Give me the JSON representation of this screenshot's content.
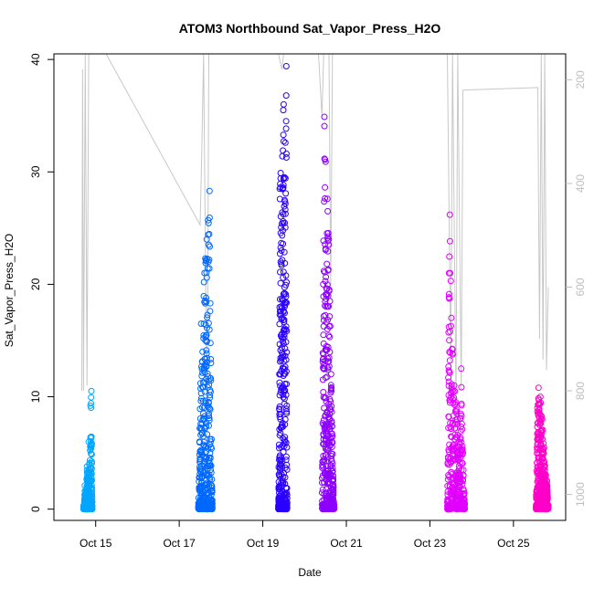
{
  "chart_data": {
    "type": "scatter",
    "title": "ATOM3 Northbound Sat_Vapor_Press_H2O",
    "xlabel": "Date",
    "ylabel": "Sat_Vapor_Press_H2O",
    "xlim": [
      "2016-10-14T00:00",
      "2016-10-26T06:00"
    ],
    "ylim": [
      -1,
      40.5
    ],
    "y_ticks": [
      0,
      10,
      20,
      30,
      40
    ],
    "x_ticks": [
      {
        "date": "2016-10-15T00:00",
        "label": "Oct 15"
      },
      {
        "date": "2016-10-17T00:00",
        "label": "Oct 17"
      },
      {
        "date": "2016-10-19T00:00",
        "label": "Oct 19"
      },
      {
        "date": "2016-10-21T00:00",
        "label": "Oct 21"
      },
      {
        "date": "2016-10-23T00:00",
        "label": "Oct 23"
      },
      {
        "date": "2016-10-25T00:00",
        "label": "Oct 25"
      }
    ],
    "right_axis": {
      "range": [
        1050,
        150
      ],
      "reversed": true,
      "ticks": [
        200,
        400,
        600,
        800,
        1000
      ],
      "color": "#bebebe"
    },
    "grid": false,
    "legend": "none",
    "series": [
      {
        "color": "#00a6ff",
        "start": "2016-10-14T17:00",
        "end": "2016-10-14T22:00",
        "max": 10.5,
        "points": [
          [
            0.0,
            0.1
          ],
          [
            0.1,
            0.6
          ],
          [
            0.15,
            2.1
          ],
          [
            0.3,
            1.0
          ],
          [
            0.4,
            3.8
          ],
          [
            0.5,
            2.2
          ],
          [
            0.6,
            6.0
          ],
          [
            0.7,
            4.1
          ],
          [
            0.8,
            9.2
          ],
          [
            0.9,
            10.5
          ],
          [
            1.0,
            0.3
          ]
        ]
      },
      {
        "color": "#0068ff",
        "start": "2016-10-17T11:00",
        "end": "2016-10-17T19:00",
        "max": 28.3,
        "points": [
          [
            0.0,
            0.2
          ],
          [
            0.08,
            6.0
          ],
          [
            0.15,
            11.2
          ],
          [
            0.2,
            16.5
          ],
          [
            0.3,
            14.0
          ],
          [
            0.4,
            20.2
          ],
          [
            0.5,
            22.3
          ],
          [
            0.6,
            24.0
          ],
          [
            0.7,
            25.7
          ],
          [
            0.8,
            28.3
          ],
          [
            0.9,
            13.0
          ],
          [
            1.0,
            0.5
          ]
        ]
      },
      {
        "color": "#2a00ff",
        "start": "2016-10-19T09:00",
        "end": "2016-10-19T14:00",
        "max": 39.4,
        "points": [
          [
            0.0,
            0.3
          ],
          [
            0.1,
            12.0
          ],
          [
            0.15,
            28.5
          ],
          [
            0.25,
            29.9
          ],
          [
            0.35,
            23.0
          ],
          [
            0.45,
            31.4
          ],
          [
            0.55,
            35.5
          ],
          [
            0.6,
            36.0
          ],
          [
            0.7,
            29.5
          ],
          [
            0.8,
            32.6
          ],
          [
            0.9,
            39.4
          ],
          [
            1.0,
            0.6
          ]
        ]
      },
      {
        "color": "#8d00ff",
        "start": "2016-10-20T10:00",
        "end": "2016-10-20T17:00",
        "max": 35.0,
        "points": [
          [
            0.0,
            0.4
          ],
          [
            0.1,
            20.0
          ],
          [
            0.2,
            34.9
          ],
          [
            0.3,
            30.9
          ],
          [
            0.45,
            27.6
          ],
          [
            0.55,
            24.0
          ],
          [
            0.65,
            18.5
          ],
          [
            0.75,
            12.0
          ],
          [
            0.85,
            6.5
          ],
          [
            1.0,
            0.3
          ]
        ]
      },
      {
        "color": "#e100ff",
        "start": "2016-10-23T10:00",
        "end": "2016-10-23T20:00",
        "max": 26.2,
        "points": [
          [
            0.0,
            0.3
          ],
          [
            0.1,
            21.0
          ],
          [
            0.15,
            26.2
          ],
          [
            0.2,
            20.3
          ],
          [
            0.3,
            14.2
          ],
          [
            0.4,
            11.0
          ],
          [
            0.5,
            9.5
          ],
          [
            0.6,
            7.6
          ],
          [
            0.7,
            6.0
          ],
          [
            0.8,
            12.5
          ],
          [
            0.9,
            5.0
          ],
          [
            1.0,
            0.4
          ]
        ]
      },
      {
        "color": "#ff00c8",
        "start": "2016-10-25T13:00",
        "end": "2016-10-25T20:00",
        "max": 10.8,
        "points": [
          [
            0.0,
            0.2
          ],
          [
            0.1,
            9.0
          ],
          [
            0.2,
            10.8
          ],
          [
            0.35,
            10.0
          ],
          [
            0.5,
            8.0
          ],
          [
            0.65,
            5.5
          ],
          [
            0.8,
            3.0
          ],
          [
            0.9,
            2.5
          ],
          [
            1.0,
            0.3
          ]
        ]
      }
    ],
    "overlay_line": {
      "color": "#c8c8c8",
      "axis": "right",
      "points": [
        [
          "2016-10-14T16:00",
          800
        ],
        [
          "2016-10-14T16:30",
          180
        ],
        [
          "2016-10-14T17:00",
          800
        ],
        [
          "2016-10-14T18:00",
          150
        ],
        [
          "2016-10-14T19:00",
          790
        ],
        [
          "2016-10-14T20:00",
          150
        ],
        [
          "2016-10-15T06:00",
          150
        ],
        [
          "2016-10-17T12:00",
          480
        ],
        [
          "2016-10-17T13:00",
          330
        ],
        [
          "2016-10-17T14:00",
          150
        ],
        [
          "2016-10-17T16:00",
          900
        ],
        [
          "2016-10-17T17:00",
          150
        ],
        [
          "2016-10-19T09:00",
          150
        ],
        [
          "2016-10-19T11:00",
          180
        ],
        [
          "2016-10-19T12:00",
          150
        ],
        [
          "2016-10-20T08:00",
          150
        ],
        [
          "2016-10-20T10:00",
          270
        ],
        [
          "2016-10-20T11:00",
          150
        ],
        [
          "2016-10-20T14:00",
          150
        ],
        [
          "2016-10-20T15:00",
          600
        ],
        [
          "2016-10-20T16:00",
          150
        ],
        [
          "2016-10-23T10:00",
          150
        ],
        [
          "2016-10-23T12:00",
          760
        ],
        [
          "2016-10-23T13:00",
          150
        ],
        [
          "2016-10-23T15:00",
          820
        ],
        [
          "2016-10-23T16:00",
          150
        ],
        [
          "2016-10-23T18:00",
          800
        ],
        [
          "2016-10-23T19:00",
          220
        ],
        [
          "2016-10-25T14:00",
          215
        ],
        [
          "2016-10-25T15:00",
          700
        ],
        [
          "2016-10-25T16:00",
          150
        ],
        [
          "2016-10-25T17:00",
          740
        ],
        [
          "2016-10-25T18:00",
          150
        ],
        [
          "2016-10-25T19:00",
          760
        ],
        [
          "2016-10-25T20:00",
          600
        ]
      ]
    }
  }
}
